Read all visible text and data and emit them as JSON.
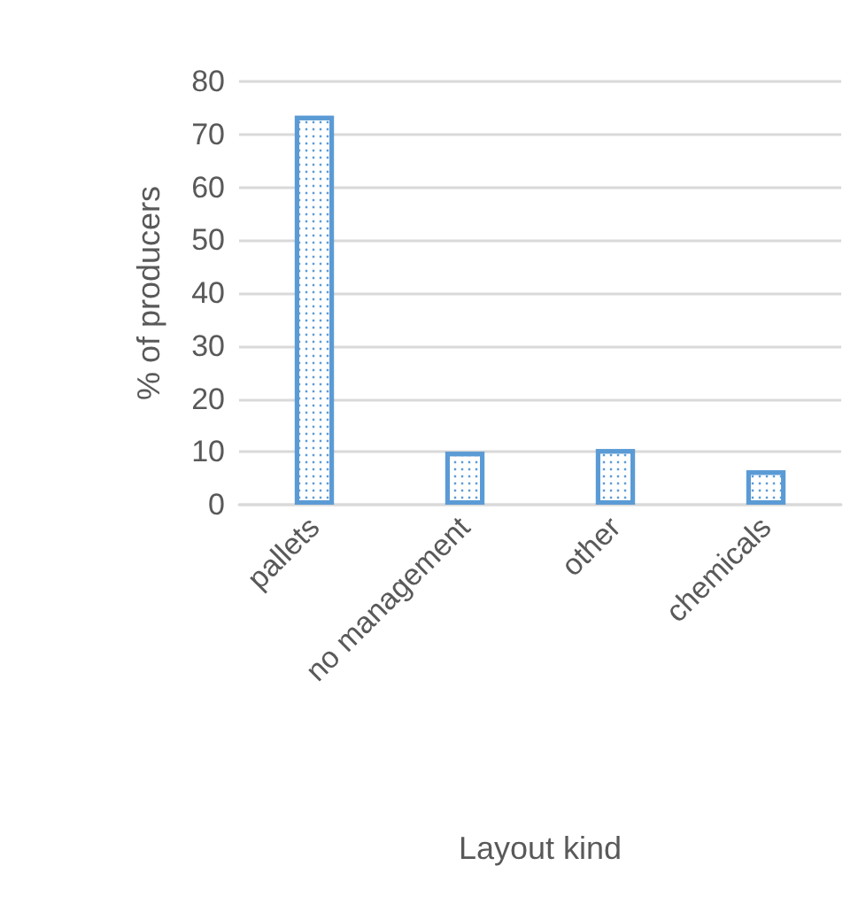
{
  "chart_data": {
    "type": "bar",
    "xlabel": "Layout kind",
    "ylabel": "% of producers",
    "categories": [
      "pallets",
      "no management",
      "other",
      "chemicals"
    ],
    "values": [
      73.5,
      10,
      10.5,
      6.5
    ],
    "color": "#5b9bd5",
    "ylim": [
      0,
      80
    ],
    "yticks": [
      0,
      10,
      20,
      30,
      40,
      50,
      60,
      70,
      80
    ],
    "grid": "y"
  }
}
